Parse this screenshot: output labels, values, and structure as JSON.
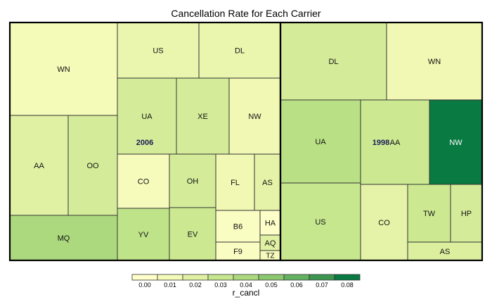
{
  "chart_data": {
    "type": "treemap",
    "title": "Cancellation Rate for Each Carrier",
    "color_variable": "r_cancl",
    "legend": {
      "position": "bottom",
      "title": "r_cancl",
      "ticks": [
        "0.00",
        "0.01",
        "0.02",
        "0.03",
        "0.04",
        "0.05",
        "0.06",
        "0.07",
        "0.08"
      ],
      "colors": [
        "#ffffcc",
        "#f4fab8",
        "#e0f1a3",
        "#c7e78e",
        "#acd97d",
        "#8cc870",
        "#64b161",
        "#3c9650",
        "#087a42"
      ]
    },
    "groups": [
      {
        "year": "2006",
        "cells": [
          {
            "carrier": "WN",
            "r_cancl": 0.01
          },
          {
            "carrier": "AA",
            "r_cancl": 0.02
          },
          {
            "carrier": "OO",
            "r_cancl": 0.025
          },
          {
            "carrier": "MQ",
            "r_cancl": 0.04
          },
          {
            "carrier": "US",
            "r_cancl": 0.015
          },
          {
            "carrier": "DL",
            "r_cancl": 0.015
          },
          {
            "carrier": "UA",
            "r_cancl": 0.025
          },
          {
            "carrier": "XE",
            "r_cancl": 0.025
          },
          {
            "carrier": "NW",
            "r_cancl": 0.012
          },
          {
            "carrier": "CO",
            "r_cancl": 0.008
          },
          {
            "carrier": "OH",
            "r_cancl": 0.025
          },
          {
            "carrier": "FL",
            "r_cancl": 0.012
          },
          {
            "carrier": "AS",
            "r_cancl": 0.018
          },
          {
            "carrier": "YV",
            "r_cancl": 0.033
          },
          {
            "carrier": "EV",
            "r_cancl": 0.028
          },
          {
            "carrier": "B6",
            "r_cancl": 0.005
          },
          {
            "carrier": "HA",
            "r_cancl": 0.002
          },
          {
            "carrier": "AQ",
            "r_cancl": 0.02
          },
          {
            "carrier": "F9",
            "r_cancl": 0.005
          },
          {
            "carrier": "TZ",
            "r_cancl": 0.008
          }
        ]
      },
      {
        "year": "1998",
        "cells": [
          {
            "carrier": "DL",
            "r_cancl": 0.025
          },
          {
            "carrier": "WN",
            "r_cancl": 0.012
          },
          {
            "carrier": "UA",
            "r_cancl": 0.035
          },
          {
            "carrier": "AA",
            "r_cancl": 0.028
          },
          {
            "carrier": "NW",
            "r_cancl": 0.08
          },
          {
            "carrier": "US",
            "r_cancl": 0.03
          },
          {
            "carrier": "CO",
            "r_cancl": 0.018
          },
          {
            "carrier": "TW",
            "r_cancl": 0.028
          },
          {
            "carrier": "HP",
            "r_cancl": 0.025
          },
          {
            "carrier": "AS",
            "r_cancl": 0.022
          }
        ]
      }
    ]
  }
}
